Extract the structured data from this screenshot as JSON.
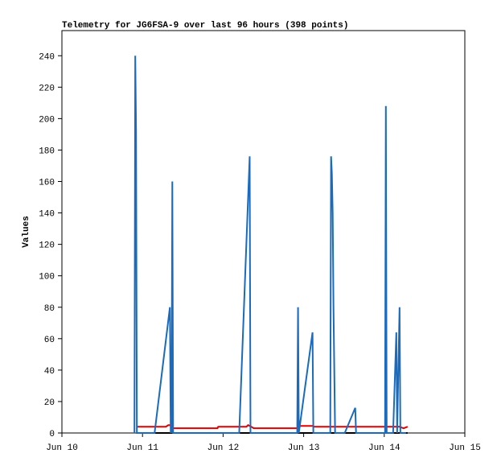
{
  "chart_data": {
    "type": "line",
    "title": "Telemetry for JG6FSA-9 over last 96 hours (398 points)",
    "ylabel": "Values",
    "xlim": [
      10,
      15
    ],
    "xticks": [
      {
        "value": 10,
        "label": "Jun 10"
      },
      {
        "value": 11,
        "label": "Jun 11"
      },
      {
        "value": 12,
        "label": "Jun 12"
      },
      {
        "value": 13,
        "label": "Jun 13"
      },
      {
        "value": 14,
        "label": "Jun 14"
      },
      {
        "value": 15,
        "label": "Jun 15"
      }
    ],
    "ylim": [
      0,
      256
    ],
    "yticks": [
      0,
      20,
      40,
      60,
      80,
      100,
      120,
      140,
      160,
      180,
      200,
      220,
      240
    ],
    "grid": false,
    "series": [
      {
        "color": "#1a6bbd",
        "x": [
          10.9,
          10.91,
          10.92,
          10.93,
          11.15,
          11.34,
          11.35,
          11.36,
          11.36,
          11.37,
          11.38,
          12.2,
          12.33,
          12.34,
          12.92,
          12.93,
          12.94,
          13.11,
          13.12,
          13.33,
          13.34,
          13.35,
          13.36,
          13.37,
          13.39,
          13.51,
          13.64,
          13.65,
          14.01,
          14.02,
          14.03,
          14.11,
          14.15,
          14.16,
          14.19,
          14.2,
          14.27
        ],
        "values": [
          0,
          240,
          192,
          0,
          0,
          80,
          0,
          48,
          0,
          160,
          0,
          0,
          176,
          0,
          0,
          80,
          0,
          64,
          0,
          0,
          176,
          165,
          140,
          80,
          0,
          0,
          16,
          0,
          0,
          208,
          0,
          0,
          64,
          0,
          80,
          0,
          0
        ]
      },
      {
        "color": "#e00000",
        "x": [
          10.93,
          11.29,
          11.32,
          11.37,
          11.38,
          11.93,
          11.94,
          12.29,
          12.31,
          12.35,
          12.38,
          12.93,
          12.96,
          13.11,
          13.13,
          14.19,
          14.24,
          14.29
        ],
        "values": [
          4,
          4,
          5,
          5,
          3,
          3,
          4,
          4,
          5,
          4,
          3,
          3,
          4.5,
          4.5,
          4,
          4,
          3,
          4
        ]
      },
      {
        "color": "#000000",
        "x": [
          10.93,
          14.29
        ],
        "values": [
          0,
          0
        ]
      }
    ]
  }
}
